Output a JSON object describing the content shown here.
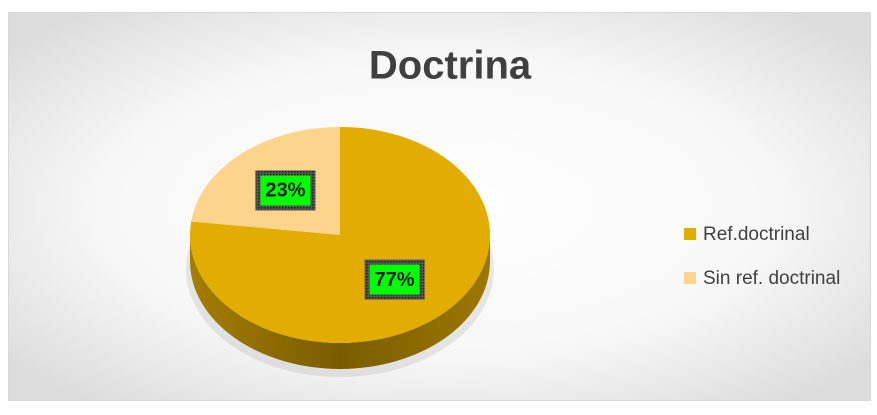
{
  "chart_data": {
    "type": "pie",
    "title": "Doctrina",
    "categories": [
      "Ref.doctrinal",
      "Sin ref. doctrinal"
    ],
    "values": [
      77,
      23
    ],
    "value_labels": [
      "77%",
      "23%"
    ],
    "colors": [
      "#e2ac00",
      "#fdd48c"
    ],
    "legend": "right"
  }
}
